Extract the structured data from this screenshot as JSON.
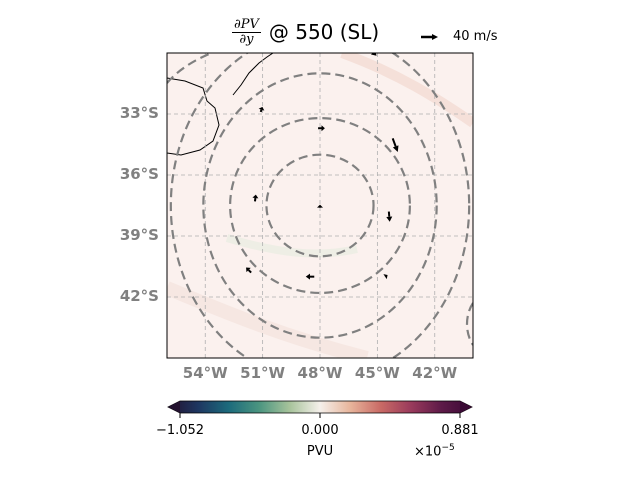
{
  "title": {
    "numerator": "∂PV",
    "denominator": "∂y",
    "text": "@ 550 (SL)"
  },
  "reference_vector": {
    "label": "40 m/s",
    "speed": 40,
    "units": "m/s"
  },
  "map": {
    "lon_range": [
      -56,
      -40
    ],
    "lat_range": [
      -45,
      -30
    ],
    "lat_ticks": [
      {
        "value": -33,
        "label": "33°S"
      },
      {
        "value": -36,
        "label": "36°S"
      },
      {
        "value": -39,
        "label": "39°S"
      },
      {
        "value": -42,
        "label": "42°S"
      }
    ],
    "lon_ticks": [
      {
        "value": -54,
        "label": "54°W"
      },
      {
        "value": -51,
        "label": "51°W"
      },
      {
        "value": -48,
        "label": "48°W"
      },
      {
        "value": -45,
        "label": "45°W"
      },
      {
        "value": -42,
        "label": "42°W"
      }
    ],
    "gridlines": true,
    "background_field_color": "#fbf1ee",
    "contours": {
      "style": "dashed",
      "color": "#808080",
      "center": {
        "lon": -48,
        "lat": -37.5
      },
      "rings": [
        {
          "rlon": 2.8,
          "rlat": 2.5
        },
        {
          "rlon": 4.7,
          "rlat": 4.3
        },
        {
          "rlon": 6.1,
          "rlat": 6.5
        },
        {
          "rlon": 7.8,
          "rlat": 8.6
        }
      ]
    },
    "wind_vectors": [
      {
        "lon": -51.1,
        "lat": -32.9,
        "u": 2,
        "v": 6
      },
      {
        "lon": -48.1,
        "lat": -33.7,
        "u": 8,
        "v": 0
      },
      {
        "lon": -44.2,
        "lat": -34.2,
        "u": 6,
        "v": -16
      },
      {
        "lon": -45.4,
        "lat": -29.8,
        "u": 8,
        "v": -8
      },
      {
        "lon": -51.4,
        "lat": -37.3,
        "u": 1,
        "v": 8
      },
      {
        "lon": -48.0,
        "lat": -37.5,
        "u": 0,
        "v": 1
      },
      {
        "lon": -44.4,
        "lat": -37.8,
        "u": 1,
        "v": -12
      },
      {
        "lon": -51.6,
        "lat": -40.8,
        "u": -6,
        "v": 6
      },
      {
        "lon": -48.3,
        "lat": -41.0,
        "u": -10,
        "v": 0
      },
      {
        "lon": -44.6,
        "lat": -41.0,
        "u": 3,
        "v": 2
      }
    ]
  },
  "colorbar": {
    "min": -1.052,
    "max": 0.881,
    "ticks": [
      {
        "value": -1.052,
        "label": "−1.052"
      },
      {
        "value": 0.0,
        "label": "0.000"
      },
      {
        "value": 0.881,
        "label": "0.881"
      }
    ],
    "label": "PVU",
    "exponent_base": "×10",
    "exponent_power": "−5",
    "colormap": [
      "#23122f",
      "#1e3761",
      "#1c6b7c",
      "#4b9580",
      "#a7c39b",
      "#f5f0eb",
      "#e7b49b",
      "#c96a65",
      "#993a5c",
      "#5d1a48",
      "#3a0a35"
    ]
  }
}
